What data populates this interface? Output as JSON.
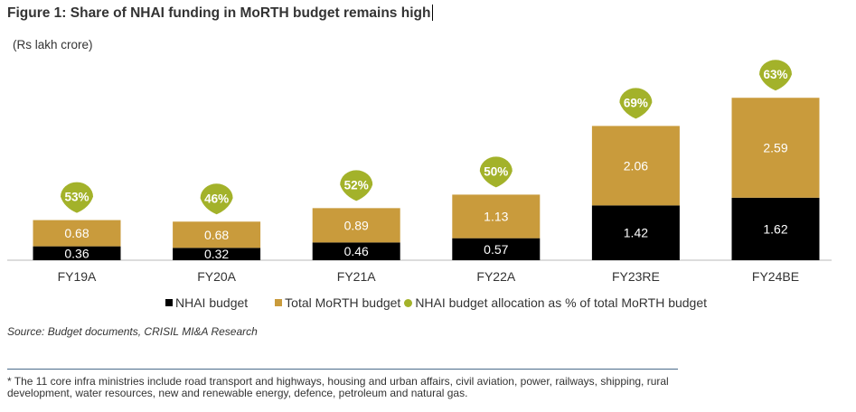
{
  "title": "Figure 1: Share of NHAI funding in MoRTH budget remains high",
  "unit_label": "(Rs lakh crore)",
  "chart_data": {
    "type": "bar",
    "stacked": true,
    "title": "Figure 1: Share of NHAI funding in MoRTH budget remains high",
    "ylabel": "(Rs lakh crore)",
    "categories": [
      "FY19A",
      "FY20A",
      "FY21A",
      "FY22A",
      "FY23RE",
      "FY24BE"
    ],
    "series": [
      {
        "name": "NHAI budget",
        "color": "#000000",
        "values": [
          0.36,
          0.32,
          0.46,
          0.57,
          1.42,
          1.62
        ]
      },
      {
        "name": "Total MoRTH budget",
        "color": "#C99B3C",
        "values": [
          0.68,
          0.68,
          0.89,
          1.13,
          2.06,
          2.59
        ]
      }
    ],
    "percent_series": {
      "name": "NHAI budget allocation as % of total MoRTH budget",
      "color": "#A3B22A",
      "labels": [
        "53%",
        "46%",
        "52%",
        "50%",
        "69%",
        "63%"
      ]
    },
    "ylim": [
      0,
      4.5
    ],
    "grid": false,
    "legend_position": "bottom"
  },
  "source": "Source: Budget documents, CRISIL MI&A Research",
  "footnote": "* The 11 core infra ministries include road transport and highways, housing and urban affairs, civil aviation, power, railways, shipping, rural development, water resources, new and renewable energy, defence, petroleum and natural gas."
}
